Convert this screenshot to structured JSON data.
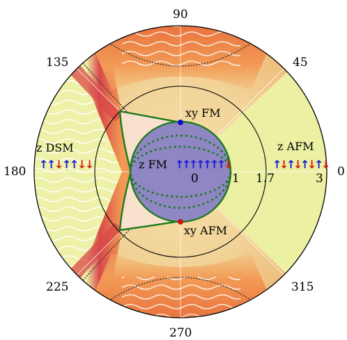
{
  "angle_labels": [
    "0",
    "45",
    "90",
    "135",
    "180",
    "225",
    "270",
    "315"
  ],
  "radial_labels": [
    "0",
    "1",
    "1.7",
    "3"
  ],
  "region_labels": {
    "xy_fm": "xy FM",
    "xy_afm": "xy AFM",
    "z_fm": "z FM",
    "z_afm": "z AFM",
    "z_dsm": "z DSM"
  },
  "spin_rows": {
    "z_dsm": [
      "↑",
      "↑",
      "↓",
      "↑",
      "↑",
      "↓",
      "↓"
    ],
    "z_fm": [
      "↑",
      "↑",
      "↑",
      "↑",
      "↑",
      "↑",
      "↑",
      "↓"
    ],
    "z_afm": [
      "↑",
      "↓",
      "↑",
      "↓",
      "↑",
      "↓",
      "↑",
      "↓"
    ]
  },
  "colors": {
    "spin_up": "#1b1bd6",
    "spin_down": "#d61b1b",
    "inner_disk": "#8f86c4",
    "boundary": "#1f7a1f",
    "yellow_region": "#eef2a8",
    "orange_region": "#f2a25a",
    "red_edge": "#d63b3b",
    "xy_fm_point": "#1010d0",
    "xy_afm_point": "#d01010"
  }
}
